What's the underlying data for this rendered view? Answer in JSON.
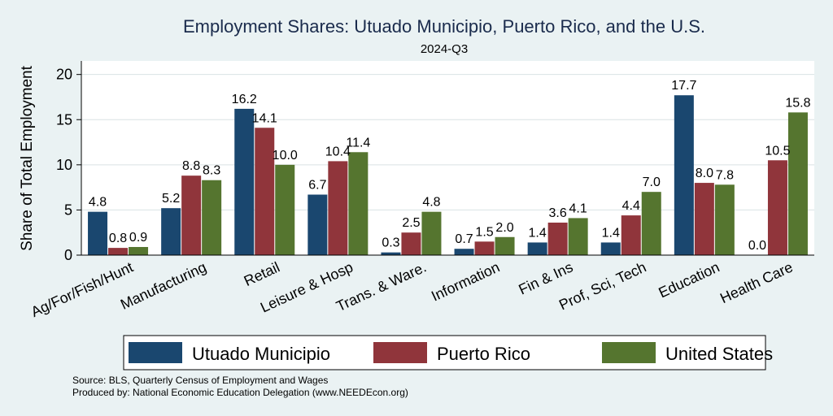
{
  "chart_data": {
    "type": "bar",
    "title": "Employment Shares: Utuado Municipio, Puerto Rico, and the U.S.",
    "subtitle": "2024-Q3",
    "ylabel": "Share of Total Employment",
    "xlabel": "",
    "ylim": [
      0,
      21.5
    ],
    "yticks": [
      0,
      5,
      10,
      15,
      20
    ],
    "grid": true,
    "legend_position": "bottom",
    "categories": [
      "Ag/For/Fish/Hunt",
      "Manufacturing",
      "Retail",
      "Leisure & Hosp",
      "Trans. & Ware.",
      "Information",
      "Fin & Ins",
      "Prof, Sci, Tech",
      "Education",
      "Health Care"
    ],
    "series": [
      {
        "name": "Utuado Municipio",
        "color": "#1a476f",
        "values": [
          4.8,
          5.2,
          16.2,
          6.7,
          0.3,
          0.7,
          1.4,
          1.4,
          17.7,
          0.0
        ]
      },
      {
        "name": "Puerto Rico",
        "color": "#90353b",
        "values": [
          0.8,
          8.8,
          14.1,
          10.4,
          2.5,
          1.5,
          3.6,
          4.4,
          8.0,
          10.5
        ]
      },
      {
        "name": "United States",
        "color": "#55752f",
        "values": [
          0.9,
          8.3,
          10.0,
          11.4,
          4.8,
          2.0,
          4.1,
          7.0,
          7.8,
          15.8
        ]
      }
    ],
    "source_lines": [
      "Source: BLS, Quarterly Census of Employment and Wages",
      "Produced by: National Economic Education Delegation (www.NEEDEcon.org)"
    ]
  }
}
